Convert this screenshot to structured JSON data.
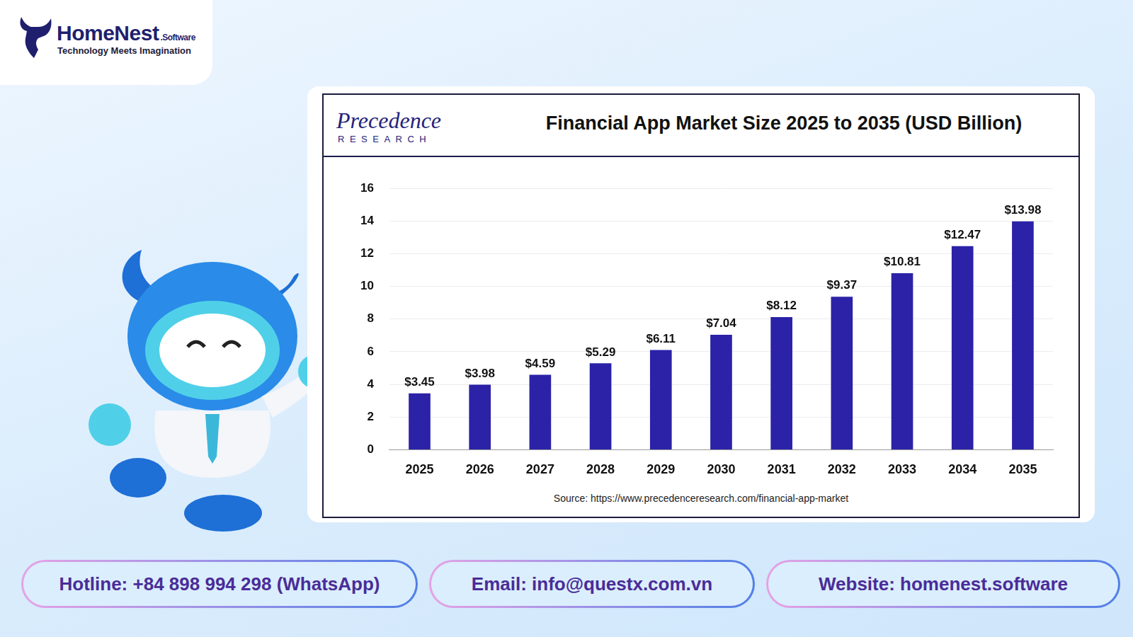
{
  "header": {
    "brand": "HomeNest",
    "brand_suffix": ".Software",
    "tagline": "Technology Meets Imagination"
  },
  "publisher": {
    "name": "Precedence",
    "subname": "RESEARCH"
  },
  "chart_data": {
    "type": "bar",
    "title": "Financial App Market Size 2025 to 2035 (USD Billion)",
    "categories": [
      "2025",
      "2026",
      "2027",
      "2028",
      "2029",
      "2030",
      "2031",
      "2032",
      "2033",
      "2034",
      "2035"
    ],
    "values": [
      3.45,
      3.98,
      4.59,
      5.29,
      6.11,
      7.04,
      8.12,
      9.37,
      10.81,
      12.47,
      13.98
    ],
    "value_labels": [
      "$3.45",
      "$3.98",
      "$4.59",
      "$5.29",
      "$6.11",
      "$7.04",
      "$8.12",
      "$9.37",
      "$10.81",
      "$12.47",
      "$13.98"
    ],
    "color": "#2b22a8",
    "ylim": [
      0,
      16
    ],
    "yticks": [
      0,
      2,
      4,
      6,
      8,
      10,
      12,
      14,
      16
    ],
    "grid": true,
    "data_labels": true,
    "source": "Source: https://www.precedenceresearch.com/financial-app-market"
  },
  "contacts": [
    "Hotline: +84 898 994 298 (WhatsApp)",
    "Email: info@questx.com.vn",
    "Website: homenest.software"
  ]
}
